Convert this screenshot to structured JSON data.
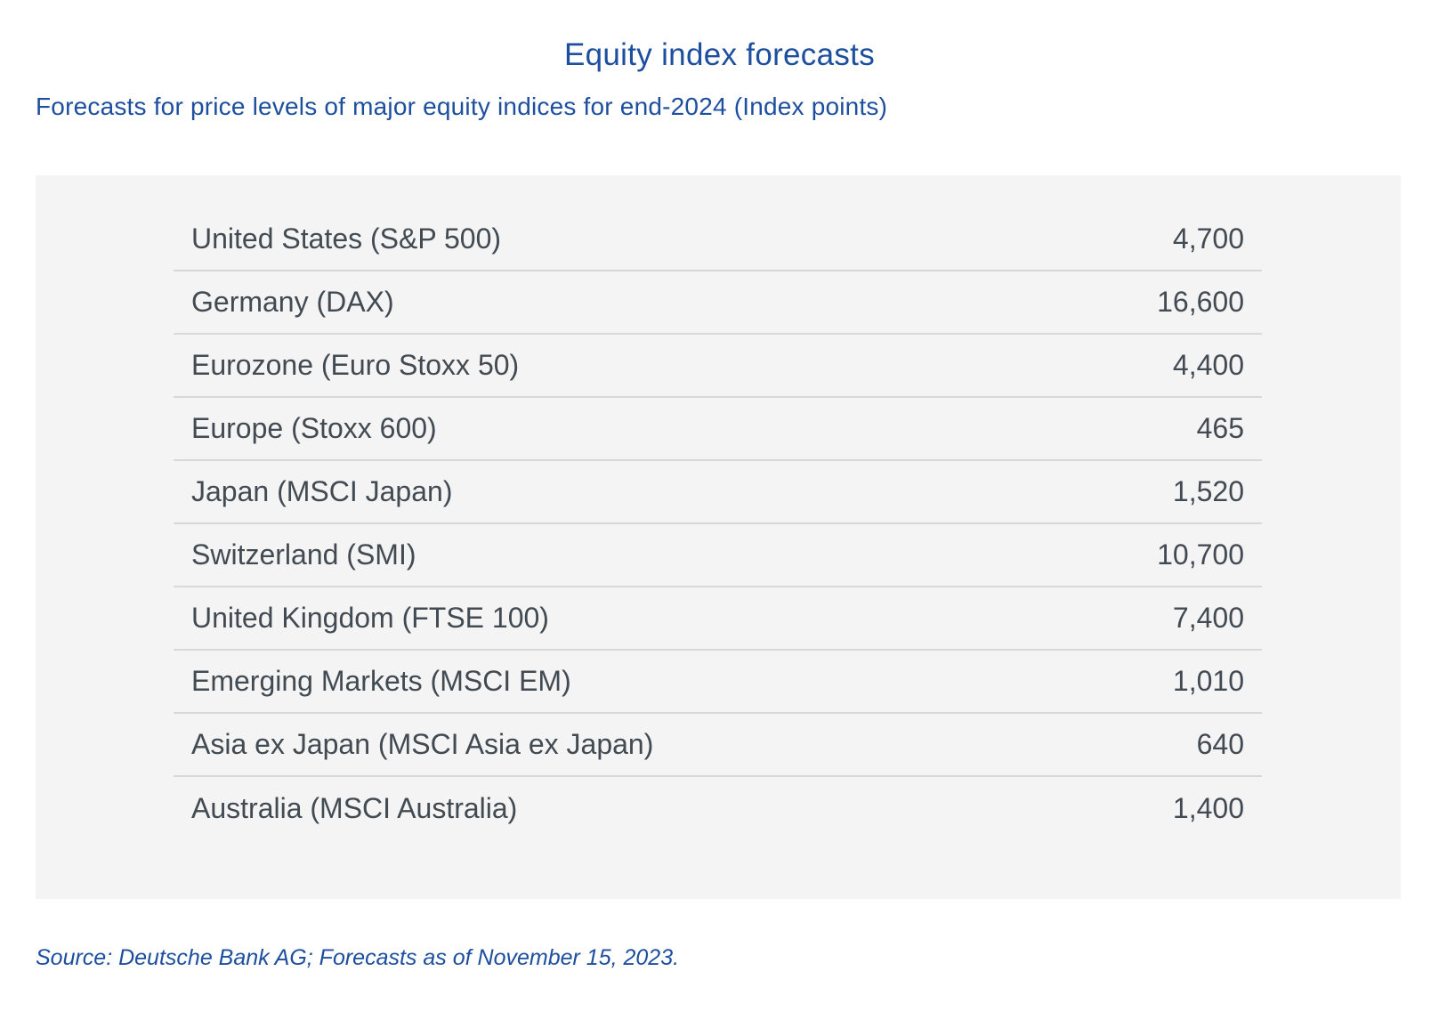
{
  "header": {
    "title": "Equity index forecasts",
    "subtitle": "Forecasts for price levels of major equity indices for end-2024 (Index points)"
  },
  "table": {
    "rows": [
      {
        "label": "United States (S&P 500)",
        "value": "4,700"
      },
      {
        "label": "Germany (DAX)",
        "value": "16,600"
      },
      {
        "label": "Eurozone (Euro Stoxx 50)",
        "value": "4,400"
      },
      {
        "label": "Europe (Stoxx 600)",
        "value": "465"
      },
      {
        "label": "Japan (MSCI Japan)",
        "value": "1,520"
      },
      {
        "label": "Switzerland (SMI)",
        "value": "10,700"
      },
      {
        "label": "United Kingdom (FTSE 100)",
        "value": "7,400"
      },
      {
        "label": "Emerging Markets (MSCI EM)",
        "value": "1,010"
      },
      {
        "label": "Asia ex Japan (MSCI Asia ex Japan)",
        "value": "640"
      },
      {
        "label": "Australia (MSCI Australia)",
        "value": "1,400"
      }
    ]
  },
  "footer": {
    "source": "Source: Deutsche Bank AG; Forecasts as of November 15, 2023."
  },
  "colors": {
    "accent_blue": "#1d4f9e",
    "row_text": "#424a52",
    "panel_background": "#f4f4f5",
    "divider": "#d7d8da"
  },
  "chart_data": {
    "type": "table",
    "title": "Equity index forecasts",
    "subtitle": "Forecasts for price levels of major equity indices for end-2024 (Index points)",
    "categories": [
      "United States (S&P 500)",
      "Germany (DAX)",
      "Eurozone (Euro Stoxx 50)",
      "Europe (Stoxx 600)",
      "Japan (MSCI Japan)",
      "Switzerland (SMI)",
      "United Kingdom (FTSE 100)",
      "Emerging Markets (MSCI EM)",
      "Asia ex Japan (MSCI Asia ex Japan)",
      "Australia (MSCI Australia)"
    ],
    "values": [
      4700,
      16600,
      4400,
      465,
      1520,
      10700,
      7400,
      1010,
      640,
      1400
    ],
    "unit": "Index points",
    "source": "Source: Deutsche Bank AG; Forecasts as of November 15, 2023."
  }
}
